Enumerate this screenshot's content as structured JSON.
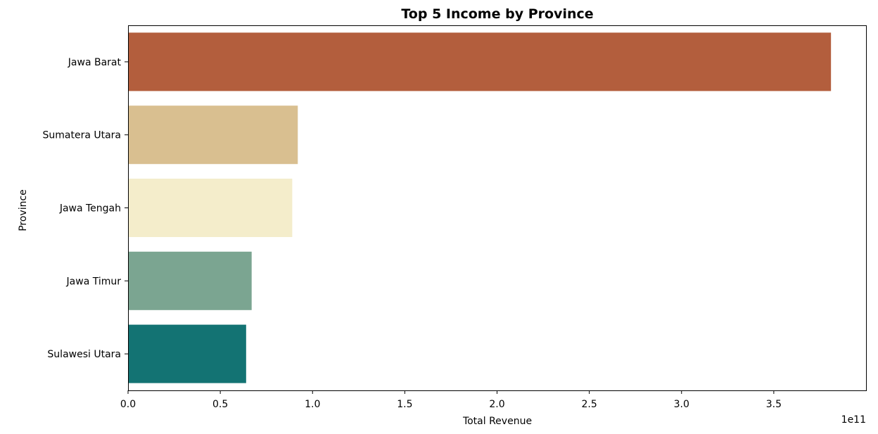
{
  "chart_data": {
    "type": "bar",
    "orientation": "horizontal",
    "title": "Top 5 Income by Province",
    "xlabel": "Total Revenue",
    "ylabel": "Province",
    "x_scale_label": "1e11",
    "categories": [
      "Jawa Barat",
      "Sumatera Utara",
      "Jawa Tengah",
      "Jawa Timur",
      "Sulawesi Utara"
    ],
    "values": [
      3.81,
      0.92,
      0.89,
      0.67,
      0.64
    ],
    "value_multiplier": 100000000000,
    "colors": [
      "#b35e3d",
      "#d9bf90",
      "#f4edcb",
      "#7ba591",
      "#137373"
    ],
    "xlim": [
      0,
      4.0
    ],
    "xticks": [
      {
        "value": 0.0,
        "label": "0.0"
      },
      {
        "value": 0.5,
        "label": "0.5"
      },
      {
        "value": 1.0,
        "label": "1.0"
      },
      {
        "value": 1.5,
        "label": "1.5"
      },
      {
        "value": 2.0,
        "label": "2.0"
      },
      {
        "value": 2.5,
        "label": "2.5"
      },
      {
        "value": 3.0,
        "label": "3.0"
      },
      {
        "value": 3.5,
        "label": "3.5"
      }
    ],
    "grid": false,
    "legend": "none"
  }
}
